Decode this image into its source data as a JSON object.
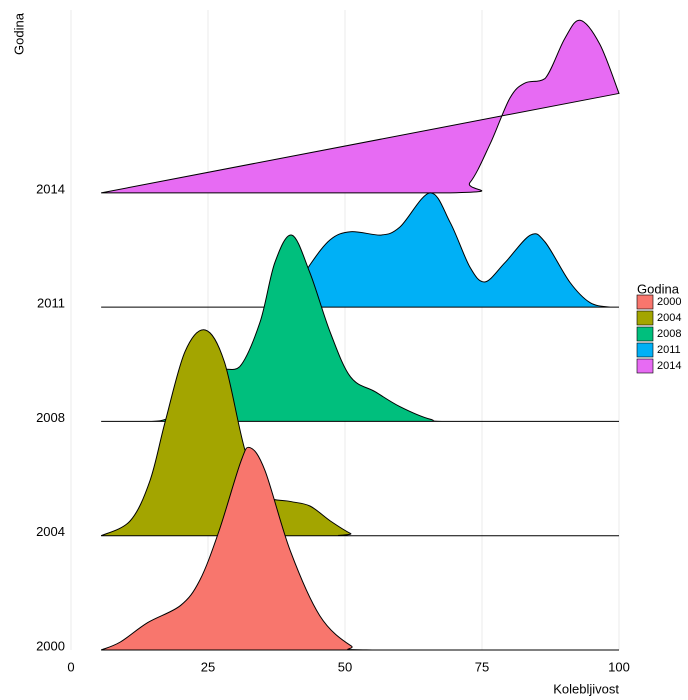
{
  "chart_data": {
    "type": "ridgeline",
    "x_label": "Kolebljivost",
    "y_label": "Godina",
    "legend_title": "Godina",
    "legend_position": "right",
    "categories": [
      "2000",
      "2004",
      "2008",
      "2011",
      "2014"
    ],
    "xlim": [
      0,
      100
    ],
    "xticks": [
      0,
      25,
      50,
      75,
      100
    ],
    "ylim": [
      0,
      5.6
    ],
    "grid": true,
    "series": [
      {
        "name": "2000",
        "color": "#f8766d",
        "x": [
          5.5,
          9,
          14,
          20,
          23.5,
          27,
          31,
          32.7,
          35.4,
          40,
          45.4,
          51,
          55,
          100
        ],
        "values": [
          0,
          0.07,
          0.24,
          0.39,
          0.61,
          1.04,
          1.65,
          1.77,
          1.57,
          0.87,
          0.3,
          0.04,
          0,
          0
        ]
      },
      {
        "name": "2004",
        "color": "#a3a500",
        "x": [
          5.5,
          10.8,
          14.4,
          17.2,
          20.8,
          24.5,
          28,
          31.8,
          35.4,
          40,
          43.6,
          47.3,
          51,
          52.7,
          100
        ],
        "values": [
          0,
          0.13,
          0.48,
          1.0,
          1.61,
          1.8,
          1.52,
          0.74,
          0.35,
          0.3,
          0.26,
          0.13,
          0.02,
          0,
          0
        ]
      },
      {
        "name": "2008",
        "color": "#00bf7d",
        "x": [
          5.5,
          14.4,
          18,
          26.3,
          30.8,
          34.5,
          37.2,
          40.3,
          43.6,
          47.3,
          51,
          55.5,
          60,
          65.5,
          70,
          100
        ],
        "values": [
          0,
          0,
          0.03,
          0.42,
          0.48,
          0.87,
          1.39,
          1.63,
          1.3,
          0.78,
          0.39,
          0.26,
          0.13,
          0.02,
          0,
          0
        ]
      },
      {
        "name": "2011",
        "color": "#00b0f6",
        "x": [
          5.5,
          35.4,
          40,
          43.6,
          47.3,
          51,
          56.4,
          60,
          65.5,
          69.2,
          72.8,
          75.5,
          79.2,
          83.8,
          86.5,
          91,
          94.7,
          98.4,
          100
        ],
        "values": [
          0,
          0,
          0.09,
          0.37,
          0.59,
          0.66,
          0.63,
          0.7,
          1.0,
          0.74,
          0.35,
          0.22,
          0.39,
          0.63,
          0.57,
          0.22,
          0.04,
          0,
          0
        ]
      },
      {
        "name": "2014",
        "color": "#e76bf3",
        "x": [
          5.5,
          69.2,
          72.8,
          76.5,
          80.1,
          82.8,
          86.5,
          90.1,
          92.9,
          96.5,
          100
        ],
        "values": [
          0,
          0,
          0.09,
          0.43,
          0.83,
          0.96,
          1.0,
          1.35,
          1.51,
          1.3,
          0.87
        ]
      }
    ]
  }
}
